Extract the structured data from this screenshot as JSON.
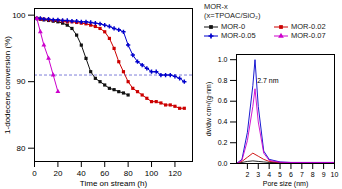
{
  "chart_data": [
    {
      "type": "line",
      "xlabel": "Time on stream (h)",
      "ylabel": "1-dodecene conversion (%)",
      "xlim": [
        0,
        135
      ],
      "xticks": [
        0,
        20,
        40,
        60,
        80,
        100,
        120
      ],
      "ylim": [
        78,
        101
      ],
      "yticks": [
        80,
        90,
        100
      ],
      "legend": "right",
      "legend_title": "MOR-x\n(x=TPOAC/SiO₂)",
      "reference_line": {
        "y": 91,
        "color": "#5555cc",
        "line_style": "dashed"
      },
      "series": [
        {
          "name": "MOR-0",
          "color": "#111111",
          "marker": "square",
          "x": [
            2,
            5,
            8,
            12,
            16,
            20,
            24,
            28,
            32,
            36,
            40,
            44,
            48,
            52,
            56,
            60,
            64,
            68,
            72,
            76,
            80
          ],
          "values": [
            99.5,
            99.4,
            99.3,
            99.2,
            99.1,
            99.0,
            98.8,
            98.5,
            98.0,
            97.0,
            95.5,
            93.5,
            91.5,
            90.5,
            90.0,
            89.5,
            89.0,
            88.8,
            88.5,
            88.3,
            88.0
          ]
        },
        {
          "name": "MOR-0.02",
          "color": "#cc0000",
          "marker": "square",
          "x": [
            2,
            5,
            8,
            12,
            16,
            20,
            24,
            28,
            32,
            36,
            40,
            44,
            48,
            52,
            56,
            60,
            64,
            68,
            72,
            76,
            80,
            84,
            88,
            92,
            96,
            100,
            104,
            108,
            112,
            116,
            120,
            124,
            128
          ],
          "values": [
            99.5,
            99.4,
            99.4,
            99.3,
            99.2,
            99.2,
            99.1,
            99.0,
            99.0,
            98.9,
            98.8,
            98.7,
            98.5,
            98.3,
            98.0,
            97.5,
            96.5,
            95.0,
            93.0,
            91.5,
            90.0,
            89.0,
            88.5,
            88.0,
            87.5,
            87.0,
            87.0,
            86.8,
            86.5,
            86.5,
            86.3,
            86.0,
            86.0
          ]
        },
        {
          "name": "MOR-0.05",
          "color": "#0000cc",
          "marker": "plus",
          "x": [
            2,
            5,
            8,
            12,
            16,
            20,
            24,
            28,
            32,
            36,
            40,
            44,
            48,
            52,
            56,
            60,
            64,
            68,
            72,
            76,
            80,
            84,
            88,
            92,
            96,
            100,
            104,
            108,
            112,
            116,
            120,
            124,
            128
          ],
          "values": [
            99.5,
            99.5,
            99.4,
            99.4,
            99.3,
            99.3,
            99.2,
            99.2,
            99.1,
            99.1,
            99.0,
            99.0,
            98.9,
            98.8,
            98.7,
            98.5,
            98.3,
            98.0,
            97.8,
            97.5,
            95.5,
            94.0,
            93.0,
            92.5,
            92.0,
            91.5,
            91.5,
            91.0,
            91.0,
            91.0,
            90.8,
            90.5,
            90.0
          ]
        },
        {
          "name": "MOR-0.07",
          "color": "#cc00cc",
          "marker": "triangle",
          "x": [
            2,
            5,
            8,
            12,
            16,
            20
          ],
          "values": [
            99.5,
            97.5,
            95.5,
            93.5,
            91.0,
            88.5
          ]
        }
      ]
    },
    {
      "type": "line",
      "xlabel": "Pore size (nm)",
      "ylabel": "dv/dw cm³/(g·nm)",
      "xlim": [
        1,
        10
      ],
      "xticks": [
        2,
        3,
        4,
        5,
        6,
        7,
        8,
        9,
        10
      ],
      "ylim": [
        0,
        1.05
      ],
      "yticks": [
        {
          "value": 0,
          "label": "0.0"
        },
        0.2,
        0.4,
        0.6,
        0.8,
        {
          "value": 1,
          "label": "1.0"
        }
      ],
      "annotations": [
        {
          "text": "2.7 nm",
          "x": 2.9,
          "y": 0.78
        }
      ],
      "series": [
        {
          "color": "#111111",
          "x": [
            1.0,
            1.5,
            2.0,
            2.5,
            3.0,
            3.5,
            4.0,
            5.0,
            6.0,
            7.0,
            8.0,
            9.0,
            10.0
          ],
          "values": [
            0.0,
            0.01,
            0.02,
            0.025,
            0.02,
            0.015,
            0.01,
            0.008,
            0.006,
            0.005,
            0.005,
            0.005,
            0.005
          ]
        },
        {
          "color": "#cc0000",
          "x": [
            1.0,
            1.5,
            2.0,
            2.5,
            3.0,
            3.5,
            4.0,
            5.0,
            6.0,
            7.0,
            8.0,
            9.0,
            10.0
          ],
          "values": [
            0.0,
            0.02,
            0.06,
            0.1,
            0.07,
            0.04,
            0.02,
            0.01,
            0.008,
            0.006,
            0.005,
            0.005,
            0.005
          ]
        },
        {
          "color": "#0000cc",
          "x": [
            1.0,
            1.5,
            2.0,
            2.5,
            2.7,
            3.0,
            3.5,
            4.0,
            5.0,
            6.0,
            7.0,
            8.0,
            9.0,
            10.0
          ],
          "values": [
            0.0,
            0.04,
            0.3,
            0.75,
            1.0,
            0.55,
            0.12,
            0.04,
            0.015,
            0.01,
            0.01,
            0.01,
            0.01,
            0.01
          ]
        },
        {
          "color": "#cc00cc",
          "x": [
            1.0,
            1.5,
            2.0,
            2.5,
            2.7,
            3.0,
            3.5,
            4.0,
            5.0,
            6.0,
            7.0,
            8.0,
            9.0,
            10.0
          ],
          "values": [
            0.0,
            0.03,
            0.22,
            0.55,
            0.72,
            0.4,
            0.1,
            0.03,
            0.012,
            0.01,
            0.01,
            0.01,
            0.01,
            0.01
          ]
        }
      ]
    }
  ]
}
